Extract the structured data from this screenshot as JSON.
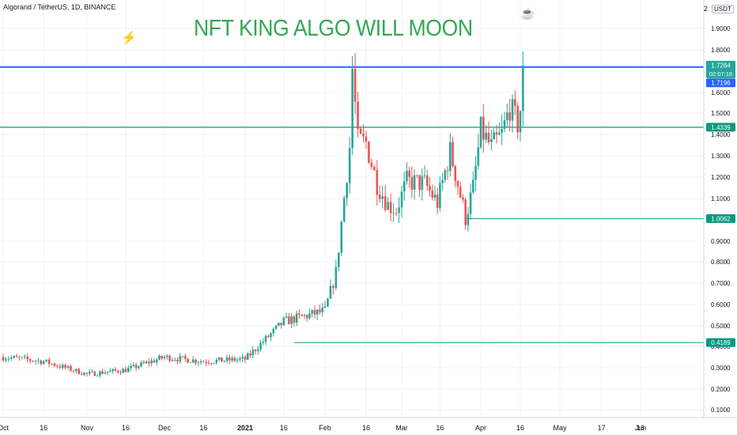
{
  "header": {
    "symbol_line": "Algorand / TetherUS, 1D, BINANCE",
    "currency_label": "USDT",
    "corner_value": "2"
  },
  "annotation": {
    "tagline": "NFT KING ALGO WILL MOON",
    "bolt_icon": "lightning-bolt-icon",
    "cup_icon": "coffee-cup-icon"
  },
  "colors": {
    "up": "#26a69a",
    "down": "#ef5350",
    "hline_blue": "#2962ff",
    "hline_teal": "#089981",
    "tagline": "#34a853",
    "grid": "#f0f3fa",
    "axis_text": "#131722"
  },
  "chart_data": {
    "type": "candlestick",
    "title": "Algorand / TetherUS, 1D, BINANCE",
    "xlabel": "",
    "ylabel": "",
    "ylim": [
      0.07,
      2.0
    ],
    "x_ticks": [
      "Oct",
      "16",
      "Nov",
      "16",
      "Dec",
      "16",
      "2021",
      "16",
      "Feb",
      "16",
      "Mar",
      "16",
      "Apr",
      "16",
      "May",
      "17",
      "Jun",
      "16"
    ],
    "y_ticks": [
      "1.9000",
      "1.8000",
      "1.6000",
      "1.5000",
      "1.4000",
      "1.3000",
      "1.2000",
      "1.1000",
      "0.9000",
      "0.8000",
      "0.7000",
      "0.6000",
      "0.5000",
      "0.4000",
      "0.3000",
      "0.2000",
      "0.1000"
    ],
    "price_labels": [
      {
        "value": "1.7264",
        "sub": "02:07:18",
        "role": "last-price"
      },
      {
        "value": "1.7196",
        "role": "horizontal-line"
      },
      {
        "value": "1.4339",
        "role": "horizontal-line"
      },
      {
        "value": "1.0062",
        "role": "horizontal-ray"
      },
      {
        "value": "0.4189",
        "role": "horizontal-ray"
      }
    ],
    "horizontal_lines": [
      1.7196,
      1.4339
    ],
    "horizontal_rays": [
      {
        "value": 1.0062,
        "start_date": "Mar 26"
      },
      {
        "value": 0.4189,
        "start_date": "Jan 20"
      }
    ],
    "path_dates": [
      "Oct 1",
      "Oct 16",
      "Nov 1",
      "Nov 16",
      "Dec 1",
      "Dec 16",
      "Jan 1",
      "Jan 16",
      "Feb 1",
      "Feb 5",
      "Feb 10",
      "Feb 11",
      "Feb 13",
      "Feb 16",
      "Feb 20",
      "Feb 24",
      "Feb 27",
      "Mar 3",
      "Mar 10",
      "Mar 15",
      "Mar 20",
      "Mar 22",
      "Mar 26",
      "Mar 29",
      "Apr 1",
      "Apr 5",
      "Apr 9",
      "Apr 12",
      "Apr 15",
      "Apr 16",
      "Apr 17"
    ],
    "path_close": [
      0.35,
      0.33,
      0.27,
      0.29,
      0.35,
      0.33,
      0.34,
      0.52,
      0.57,
      0.75,
      1.34,
      1.71,
      1.37,
      1.36,
      1.17,
      1.07,
      1.05,
      1.18,
      1.17,
      1.08,
      1.32,
      1.22,
      1.01,
      1.15,
      1.42,
      1.34,
      1.4,
      1.53,
      1.45,
      1.52,
      1.73
    ]
  }
}
